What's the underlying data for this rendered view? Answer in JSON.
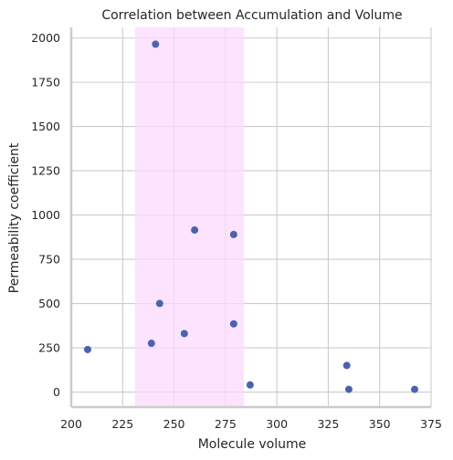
{
  "chart_data": {
    "type": "scatter",
    "title": "Correlation between Accumulation and Volume",
    "xlabel": "Molecule volume",
    "ylabel": "Permeability coefficient",
    "xlim": [
      200,
      375
    ],
    "ylim": [
      -85,
      2060
    ],
    "xticks": [
      200,
      225,
      250,
      275,
      300,
      325,
      350,
      375
    ],
    "xtick_labels": [
      "200",
      "225",
      "250",
      "275",
      "300",
      "325",
      "350",
      "375"
    ],
    "yticks": [
      0,
      250,
      500,
      750,
      1000,
      1250,
      1500,
      1750,
      2000
    ],
    "ytick_labels": [
      "0",
      "250",
      "500",
      "750",
      "1000",
      "1250",
      "1500",
      "1750",
      "2000"
    ],
    "grid": true,
    "highlight_band": {
      "x_range": [
        231,
        284
      ],
      "color": "#fbd9fd"
    },
    "point_color": "#4c62ad",
    "points": [
      {
        "x": 208,
        "y": 240
      },
      {
        "x": 239,
        "y": 275
      },
      {
        "x": 241,
        "y": 1965
      },
      {
        "x": 243,
        "y": 500
      },
      {
        "x": 255,
        "y": 330
      },
      {
        "x": 260,
        "y": 915
      },
      {
        "x": 279,
        "y": 890
      },
      {
        "x": 279,
        "y": 385
      },
      {
        "x": 287,
        "y": 40
      },
      {
        "x": 334,
        "y": 150
      },
      {
        "x": 335,
        "y": 15
      },
      {
        "x": 367,
        "y": 15
      }
    ]
  }
}
